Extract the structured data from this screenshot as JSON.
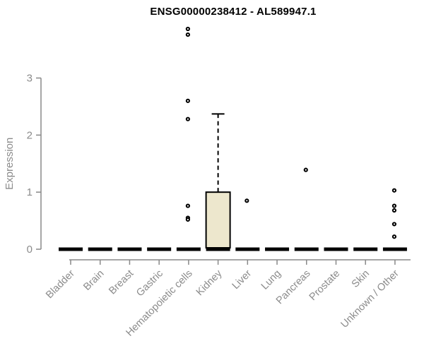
{
  "chart_data": {
    "type": "boxplot",
    "title": "ENSG00000238412 - AL589947.1",
    "xlabel": "",
    "ylabel": "Expression",
    "ylim": [
      0,
      3
    ],
    "yticks": [
      0,
      1,
      2,
      3
    ],
    "ytick_labels": [
      "0",
      "1",
      "2",
      "3"
    ],
    "grid": false,
    "legend": "none",
    "categories": [
      "Bladder",
      "Brain",
      "Breast",
      "Gastric",
      "Hematopoietic cells",
      "Kidney",
      "Liver",
      "Lung",
      "Pancreas",
      "Prostate",
      "Skin",
      "Unknown / Other"
    ],
    "series": [
      {
        "category": "Bladder",
        "whisker_low": 0,
        "q1": 0,
        "median": 0,
        "q3": 0,
        "whisker_high": 0,
        "outliers": []
      },
      {
        "category": "Brain",
        "whisker_low": 0,
        "q1": 0,
        "median": 0,
        "q3": 0,
        "whisker_high": 0,
        "outliers": []
      },
      {
        "category": "Breast",
        "whisker_low": 0,
        "q1": 0,
        "median": 0,
        "q3": 0,
        "whisker_high": 0,
        "outliers": []
      },
      {
        "category": "Gastric",
        "whisker_low": 0,
        "q1": 0,
        "median": 0,
        "q3": 0,
        "whisker_high": 0,
        "outliers": []
      },
      {
        "category": "Hematopoietic cells",
        "whisker_low": 0,
        "q1": 0,
        "median": 0,
        "q3": 0,
        "whisker_high": 0,
        "outliers": [
          3.86,
          3.76,
          2.6,
          2.28,
          0.76,
          0.55,
          0.52
        ]
      },
      {
        "category": "Kidney",
        "whisker_low": 0,
        "q1": 0,
        "median": 0,
        "q3": 1.0,
        "whisker_high": 2.37,
        "outliers": []
      },
      {
        "category": "Liver",
        "whisker_low": 0,
        "q1": 0,
        "median": 0,
        "q3": 0,
        "whisker_high": 0,
        "outliers": [
          0.85
        ]
      },
      {
        "category": "Lung",
        "whisker_low": 0,
        "q1": 0,
        "median": 0,
        "q3": 0,
        "whisker_high": 0,
        "outliers": []
      },
      {
        "category": "Pancreas",
        "whisker_low": 0,
        "q1": 0,
        "median": 0,
        "q3": 0,
        "whisker_high": 0,
        "outliers": [
          1.39
        ]
      },
      {
        "category": "Prostate",
        "whisker_low": 0,
        "q1": 0,
        "median": 0,
        "q3": 0,
        "whisker_high": 0,
        "outliers": []
      },
      {
        "category": "Skin",
        "whisker_low": 0,
        "q1": 0,
        "median": 0,
        "q3": 0,
        "whisker_high": 0,
        "outliers": []
      },
      {
        "category": "Unknown / Other",
        "whisker_low": 0,
        "q1": 0,
        "median": 0,
        "q3": 0,
        "whisker_high": 0,
        "outliers": [
          1.03,
          0.76,
          0.68,
          0.44,
          0.22
        ]
      }
    ],
    "colors": {
      "box_fill": "#EDE7CD",
      "box_stroke": "#000000",
      "data_color": "#000000",
      "axis_color": "#898989",
      "tick_label_color": "#8b8b8b",
      "title_color": "#000000",
      "background": "#ffffff"
    }
  }
}
